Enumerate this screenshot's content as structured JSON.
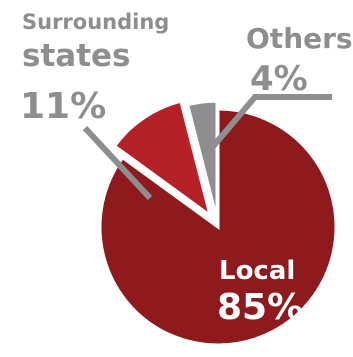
{
  "chart_data": {
    "type": "pie",
    "title": "",
    "slices": [
      {
        "label": "Local",
        "value": 85,
        "display": "85%",
        "color": "#8e1a1d"
      },
      {
        "label": "Surrounding states",
        "value": 11,
        "display": "11%",
        "color": "#b52127"
      },
      {
        "label": "Others",
        "value": 4,
        "display": "4%",
        "color": "#8e8e90"
      }
    ]
  },
  "labels": {
    "surrounding_line1": "Surrounding",
    "surrounding_line2": "states",
    "surrounding_pct": "11%",
    "others_name": "Others",
    "others_pct": "4%",
    "local_name": "Local",
    "local_pct": "85%"
  }
}
